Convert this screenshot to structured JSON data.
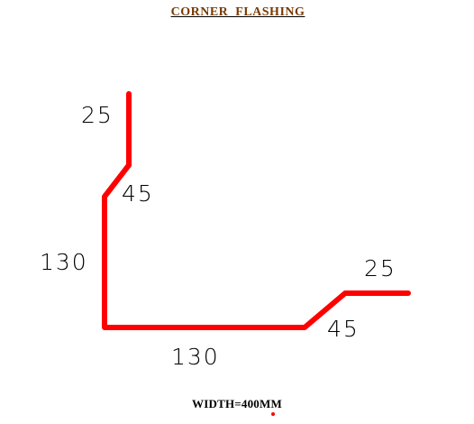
{
  "title": {
    "text": "CORNER  FLASHING",
    "color": "#7a3a00"
  },
  "profile": {
    "line_color": "#ff0000",
    "dimensions": {
      "top_return": "25",
      "top_bend": "45",
      "vertical_leg": "130",
      "horizontal_leg": "130",
      "right_bend": "45",
      "right_return": "25"
    }
  },
  "footer": {
    "width_label": "WIDTH=400MM"
  }
}
